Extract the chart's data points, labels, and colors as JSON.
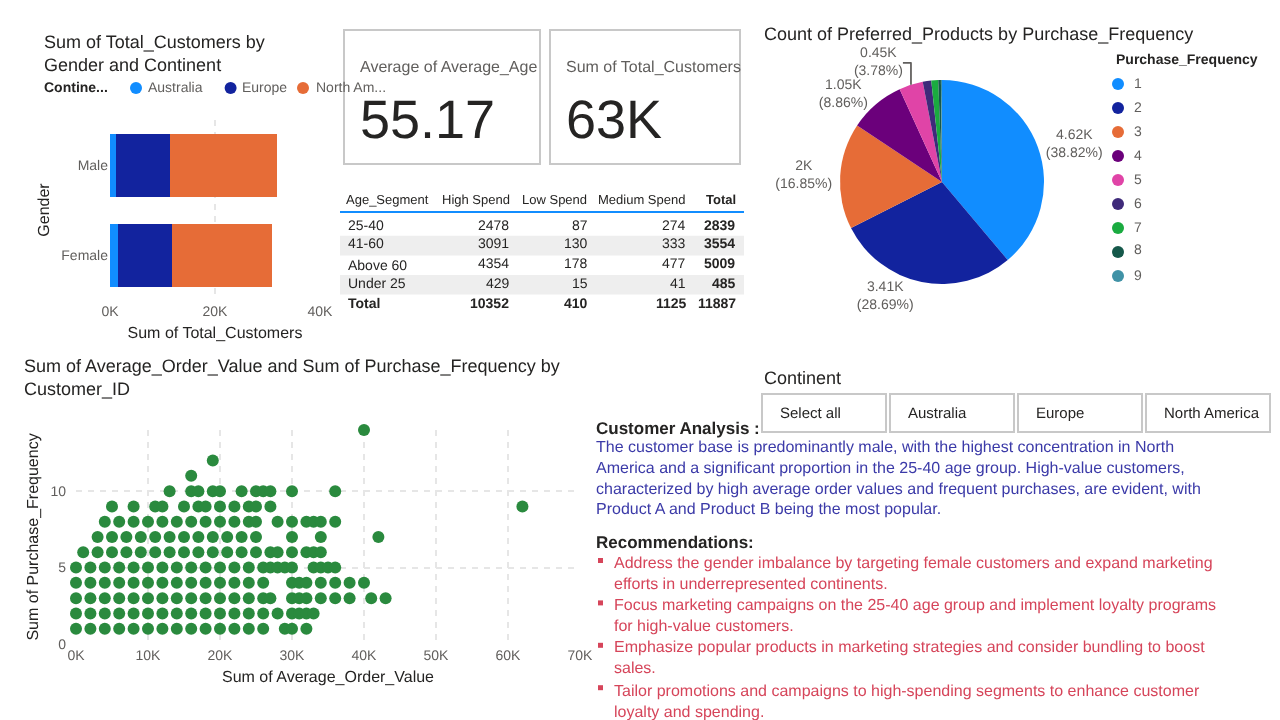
{
  "chart_data": [
    {
      "type": "bar",
      "title": "Sum of Total_Customers by Gender and Continent",
      "orientation": "horizontal",
      "stacked": true,
      "categories": [
        "Male",
        "Female"
      ],
      "xlabel": "Sum of Total_Customers",
      "ylabel": "Gender",
      "legend_title": "Contine...",
      "legend": "top",
      "grid": "x",
      "xlim": [
        0,
        40000
      ],
      "xticks": [
        {
          "value": 0,
          "label": "0K"
        },
        {
          "value": 20000,
          "label": "20K"
        },
        {
          "value": 40000,
          "label": "40K"
        }
      ],
      "series": [
        {
          "name": "Australia",
          "color": "#118dff",
          "values": [
            1100,
            1600
          ]
        },
        {
          "name": "Europe",
          "color": "#12239e",
          "values": [
            10400,
            10200
          ]
        },
        {
          "name": "North Am...",
          "color": "#e66c37",
          "values": [
            20400,
            19100
          ]
        }
      ]
    },
    {
      "type": "other",
      "title": "Average of Average_Age",
      "annotations": [
        "55.17"
      ]
    },
    {
      "type": "other",
      "title": "Sum of Total_Customers",
      "annotations": [
        "63K"
      ]
    },
    {
      "type": "other",
      "xlabel": "Age_Segment",
      "data_labels": true,
      "categories": [
        "25-40",
        "41-60",
        "Above 60",
        "Under 25",
        "Total"
      ],
      "series": [
        {
          "name": "High Spend",
          "values": [
            2478,
            3091,
            4354,
            429,
            10352
          ]
        },
        {
          "name": "Low Spend",
          "values": [
            87,
            130,
            178,
            15,
            410
          ]
        },
        {
          "name": "Medium Spend",
          "values": [
            274,
            333,
            477,
            41,
            1125
          ]
        },
        {
          "name": "Total",
          "values": [
            2839,
            3554,
            5009,
            485,
            11887
          ]
        }
      ]
    },
    {
      "type": "pie",
      "title": "Count of Preferred_Products by Purchase_Frequency",
      "legend_title": "Purchase_Frequency",
      "legend": "right",
      "categories": [
        "1",
        "2",
        "3",
        "4",
        "5",
        "6",
        "7",
        "8",
        "9"
      ],
      "values": [
        4620,
        3410,
        2000,
        1050,
        450,
        160,
        130,
        50,
        20
      ],
      "colors": [
        "#118dff",
        "#12239e",
        "#e66c37",
        "#6b007b",
        "#e044a7",
        "#3f2a7a",
        "#1aab40",
        "#15584a",
        "#4092a6"
      ],
      "value_labels": [
        "4.62K (38.82%)",
        "3.41K (28.69%)",
        "2K (16.85%)",
        "1.05K (8.86%)",
        "0.45K (3.78%)",
        null,
        null,
        null,
        null
      ]
    },
    {
      "type": "other",
      "title": "Continent",
      "categories": [
        "Select all",
        "Australia",
        "Europe",
        "North America"
      ]
    },
    {
      "type": "scatter",
      "title": "Sum of Average_Order_Value and Sum of Purchase_Frequency by Customer_ID",
      "xlabel": "Sum of Average_Order_Value",
      "ylabel": "Sum of Purchase_Frequency",
      "marker": "circle",
      "grid": true,
      "xlim": [
        0,
        70000
      ],
      "ylim": [
        0,
        14
      ],
      "xticks": [
        {
          "value": 0,
          "label": "0K"
        },
        {
          "value": 10000,
          "label": "10K"
        },
        {
          "value": 20000,
          "label": "20K"
        },
        {
          "value": 30000,
          "label": "30K"
        },
        {
          "value": 40000,
          "label": "40K"
        },
        {
          "value": 50000,
          "label": "50K"
        },
        {
          "value": 60000,
          "label": "60K"
        },
        {
          "value": 70000,
          "label": "70K"
        }
      ],
      "yticks": [
        0,
        5,
        10
      ],
      "series": [
        {
          "color": "#2a8a3e",
          "x": [
            0,
            2000,
            4000,
            6000,
            8000,
            10000,
            12000,
            14000,
            16000,
            18000,
            20000,
            22000,
            24000,
            26000,
            29000,
            30000,
            32000
          ],
          "values": [
            1,
            1,
            1,
            1,
            1,
            1,
            1,
            1,
            1,
            1,
            1,
            1,
            1,
            1,
            1,
            1,
            1
          ]
        },
        {
          "color": "#2a8a3e",
          "x": [
            0,
            2000,
            4000,
            6000,
            8000,
            10000,
            12000,
            14000,
            16000,
            18000,
            20000,
            22000,
            24000,
            26000,
            28000,
            30000,
            31000,
            32000,
            33000
          ],
          "values": [
            2,
            2,
            2,
            2,
            2,
            2,
            2,
            2,
            2,
            2,
            2,
            2,
            2,
            2,
            2,
            2,
            2,
            2,
            2
          ]
        },
        {
          "color": "#2a8a3e",
          "x": [
            0,
            2000,
            4000,
            6000,
            8000,
            10000,
            12000,
            14000,
            16000,
            18000,
            20000,
            22000,
            24000,
            26000,
            27000,
            30000,
            31000,
            32000,
            34000,
            36000,
            38000,
            41000,
            43000
          ],
          "values": [
            3,
            3,
            3,
            3,
            3,
            3,
            3,
            3,
            3,
            3,
            3,
            3,
            3,
            3,
            3,
            3,
            3,
            3,
            3,
            3,
            3,
            3,
            3
          ]
        },
        {
          "color": "#2a8a3e",
          "x": [
            0,
            2000,
            4000,
            6000,
            8000,
            10000,
            12000,
            14000,
            16000,
            18000,
            20000,
            22000,
            24000,
            26000,
            30000,
            31000,
            32000,
            34000,
            36000,
            38000,
            40000
          ],
          "values": [
            4,
            4,
            4,
            4,
            4,
            4,
            4,
            4,
            4,
            4,
            4,
            4,
            4,
            4,
            4,
            4,
            4,
            4,
            4,
            4,
            4
          ]
        },
        {
          "color": "#2a8a3e",
          "x": [
            0,
            2000,
            4000,
            6000,
            8000,
            10000,
            12000,
            14000,
            16000,
            18000,
            20000,
            22000,
            24000,
            26000,
            27000,
            28000,
            29000,
            30000,
            33000,
            34000,
            35000,
            36000
          ],
          "values": [
            5,
            5,
            5,
            5,
            5,
            5,
            5,
            5,
            5,
            5,
            5,
            5,
            5,
            5,
            5,
            5,
            5,
            5,
            5,
            5,
            5,
            5
          ]
        },
        {
          "color": "#2a8a3e",
          "x": [
            1000,
            3000,
            5000,
            7000,
            9000,
            11000,
            13000,
            15000,
            17000,
            19000,
            21000,
            23000,
            25000,
            27000,
            28000,
            30000,
            32000,
            33000,
            34000
          ],
          "values": [
            6,
            6,
            6,
            6,
            6,
            6,
            6,
            6,
            6,
            6,
            6,
            6,
            6,
            6,
            6,
            6,
            6,
            6,
            6
          ]
        },
        {
          "color": "#2a8a3e",
          "x": [
            3000,
            5000,
            7000,
            9000,
            11000,
            13000,
            15000,
            17000,
            19000,
            21000,
            23000,
            25000,
            30000,
            34000,
            42000
          ],
          "values": [
            7,
            7,
            7,
            7,
            7,
            7,
            7,
            7,
            7,
            7,
            7,
            7,
            7,
            7,
            7
          ]
        },
        {
          "color": "#2a8a3e",
          "x": [
            4000,
            6000,
            8000,
            10000,
            12000,
            14000,
            16000,
            18000,
            20000,
            22000,
            24000,
            25000,
            28000,
            30000,
            32000,
            33000,
            34000,
            36000
          ],
          "values": [
            8,
            8,
            8,
            8,
            8,
            8,
            8,
            8,
            8,
            8,
            8,
            8,
            8,
            8,
            8,
            8,
            8,
            8
          ]
        },
        {
          "color": "#2a8a3e",
          "x": [
            5000,
            8000,
            11000,
            12000,
            15000,
            17000,
            18000,
            20000,
            22000,
            24000,
            25000,
            27000,
            62000
          ],
          "values": [
            9,
            9,
            9,
            9,
            9,
            9,
            9,
            9,
            9,
            9,
            9,
            9,
            9
          ]
        },
        {
          "color": "#2a8a3e",
          "x": [
            13000,
            16000,
            17000,
            19000,
            20000,
            23000,
            25000,
            26000,
            27000,
            30000,
            36000
          ],
          "values": [
            10,
            10,
            10,
            10,
            10,
            10,
            10,
            10,
            10,
            10,
            10
          ]
        },
        {
          "color": "#2a8a3e",
          "x": [
            16000,
            19000,
            40000
          ],
          "values": [
            11,
            12,
            14
          ]
        }
      ]
    },
    {
      "type": "other",
      "title": "Customer Analysis :",
      "subtitle": "The customer base is predominantly male, with the highest concentration in North America and a significant proportion in the 25-40 age group. High-value customers, characterized by high average order values and frequent purchases, are evident, with Product A and Product B being the most popular."
    },
    {
      "type": "other",
      "title": "Recommendations:",
      "annotations": [
        "Address the gender imbalance by targeting female customers and expand marketing efforts in underrepresented continents.",
        "Focus marketing campaigns on the 25-40 age group and implement loyalty programs for high-value customers.",
        "Emphasize popular products in marketing strategies and consider bundling to boost sales.",
        "Tailor promotions and campaigns to high-spending segments to enhance customer loyalty and spending."
      ]
    }
  ]
}
